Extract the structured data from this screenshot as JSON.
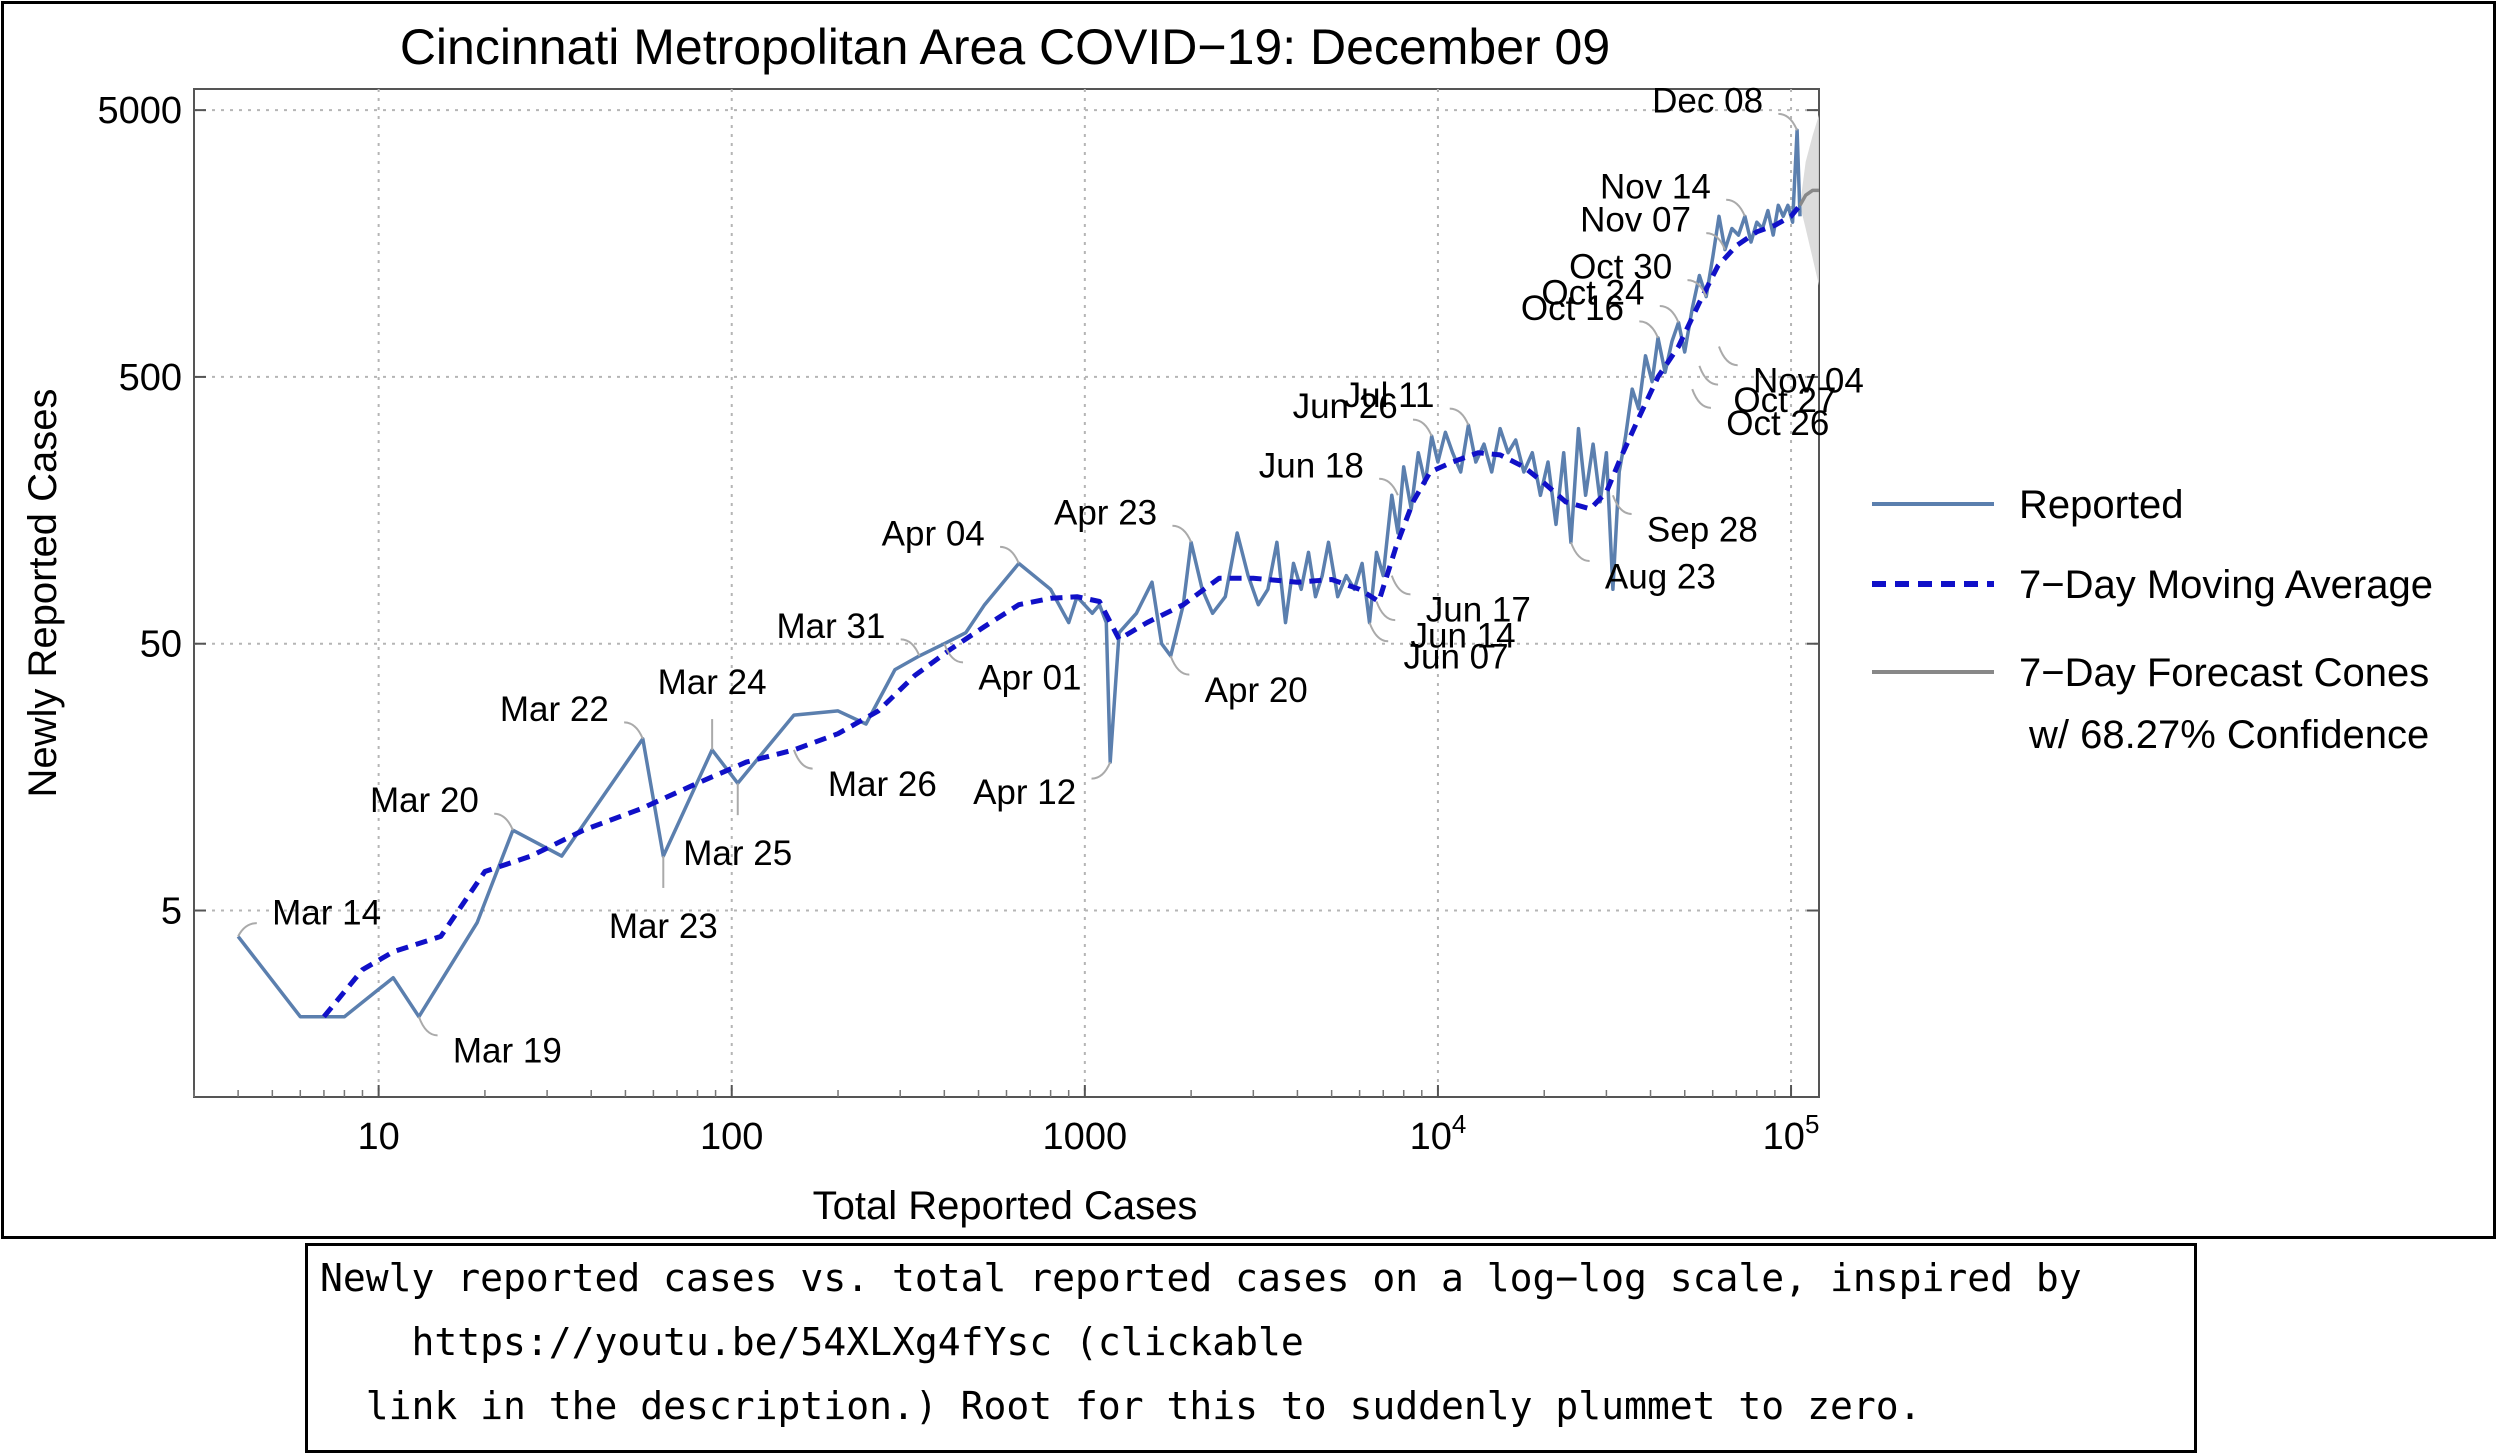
{
  "chart_data": {
    "type": "line",
    "title": "Cincinnati Metropolitan Area COVID−19: December 09",
    "xlabel": "Total Reported Cases",
    "ylabel": "Newly Reported Cases",
    "x_scale": "log",
    "y_scale": "log",
    "xlim": [
      3,
      120000
    ],
    "ylim": [
      1,
      6000
    ],
    "grid": true,
    "x_ticks": [
      {
        "value": 10,
        "label": "10"
      },
      {
        "value": 100,
        "label": "100"
      },
      {
        "value": 1000,
        "label": "1000"
      },
      {
        "value": 10000,
        "label": "10",
        "exp": "4"
      },
      {
        "value": 100000,
        "label": "10",
        "exp": "5"
      }
    ],
    "y_ticks": [
      {
        "value": 5,
        "label": "5"
      },
      {
        "value": 50,
        "label": "50"
      },
      {
        "value": 500,
        "label": "500"
      },
      {
        "value": 5000,
        "label": "5000"
      }
    ],
    "legend_placement": "right",
    "series": [
      {
        "name": "Reported",
        "color": "#5b7fae",
        "style": "solid",
        "points": [
          [
            4,
            4
          ],
          [
            6,
            2
          ],
          [
            8,
            2
          ],
          [
            11,
            2.8
          ],
          [
            13,
            2
          ],
          [
            19,
            4.5
          ],
          [
            24,
            10
          ],
          [
            33,
            8
          ],
          [
            56,
            22
          ],
          [
            64,
            8
          ],
          [
            88,
            20
          ],
          [
            104,
            15
          ],
          [
            150,
            27
          ],
          [
            200,
            28
          ],
          [
            240,
            25
          ],
          [
            290,
            40
          ],
          [
            340,
            45
          ],
          [
            400,
            50
          ],
          [
            460,
            55
          ],
          [
            520,
            70
          ],
          [
            650,
            100
          ],
          [
            800,
            80
          ],
          [
            900,
            60
          ],
          [
            950,
            75
          ],
          [
            1050,
            65
          ],
          [
            1100,
            70
          ],
          [
            1150,
            60
          ],
          [
            1180,
            18
          ],
          [
            1250,
            55
          ],
          [
            1400,
            65
          ],
          [
            1550,
            85
          ],
          [
            1650,
            50
          ],
          [
            1750,
            45
          ],
          [
            1900,
            70
          ],
          [
            2000,
            120
          ],
          [
            2150,
            80
          ],
          [
            2300,
            65
          ],
          [
            2500,
            75
          ],
          [
            2700,
            130
          ],
          [
            2900,
            90
          ],
          [
            3100,
            70
          ],
          [
            3300,
            80
          ],
          [
            3500,
            120
          ],
          [
            3700,
            60
          ],
          [
            3900,
            100
          ],
          [
            4100,
            80
          ],
          [
            4300,
            110
          ],
          [
            4500,
            75
          ],
          [
            4700,
            90
          ],
          [
            4900,
            120
          ],
          [
            5200,
            75
          ],
          [
            5500,
            90
          ],
          [
            5800,
            80
          ],
          [
            6100,
            100
          ],
          [
            6400,
            60
          ],
          [
            6700,
            110
          ],
          [
            7000,
            90
          ],
          [
            7400,
            180
          ],
          [
            7700,
            130
          ],
          [
            8000,
            230
          ],
          [
            8400,
            160
          ],
          [
            8800,
            260
          ],
          [
            9200,
            200
          ],
          [
            9600,
            300
          ],
          [
            10000,
            240
          ],
          [
            10500,
            310
          ],
          [
            11000,
            260
          ],
          [
            11600,
            220
          ],
          [
            12200,
            330
          ],
          [
            12800,
            240
          ],
          [
            13500,
            280
          ],
          [
            14200,
            220
          ],
          [
            15000,
            320
          ],
          [
            15800,
            260
          ],
          [
            16600,
            290
          ],
          [
            17500,
            220
          ],
          [
            18500,
            260
          ],
          [
            19500,
            180
          ],
          [
            20500,
            240
          ],
          [
            21600,
            140
          ],
          [
            22700,
            260
          ],
          [
            23800,
            120
          ],
          [
            25000,
            320
          ],
          [
            26200,
            180
          ],
          [
            27500,
            280
          ],
          [
            28800,
            170
          ],
          [
            30000,
            260
          ],
          [
            31300,
            80
          ],
          [
            32600,
            220
          ],
          [
            34000,
            300
          ],
          [
            35500,
            450
          ],
          [
            37000,
            380
          ],
          [
            38700,
            600
          ],
          [
            40400,
            480
          ],
          [
            42000,
            700
          ],
          [
            44000,
            520
          ],
          [
            46000,
            680
          ],
          [
            48000,
            800
          ],
          [
            50000,
            620
          ],
          [
            52500,
            900
          ],
          [
            55000,
            1200
          ],
          [
            57500,
            1000
          ],
          [
            60000,
            1400
          ],
          [
            62500,
            2000
          ],
          [
            65000,
            1500
          ],
          [
            68000,
            1800
          ],
          [
            71000,
            1700
          ],
          [
            74000,
            2000
          ],
          [
            77000,
            1600
          ],
          [
            80000,
            1900
          ],
          [
            83000,
            1800
          ],
          [
            86000,
            2100
          ],
          [
            89000,
            1700
          ],
          [
            92000,
            2200
          ],
          [
            95000,
            2000
          ],
          [
            98000,
            2200
          ],
          [
            101000,
            1900
          ],
          [
            104000,
            4200
          ],
          [
            106000,
            2000
          ]
        ]
      },
      {
        "name": "7−Day Moving Average",
        "color": "#1010c8",
        "style": "dashed",
        "points": [
          [
            7,
            2
          ],
          [
            9,
            3
          ],
          [
            11,
            3.5
          ],
          [
            15,
            4
          ],
          [
            20,
            7
          ],
          [
            27,
            8
          ],
          [
            38,
            10
          ],
          [
            55,
            12
          ],
          [
            80,
            15
          ],
          [
            110,
            18
          ],
          [
            150,
            20
          ],
          [
            200,
            23
          ],
          [
            260,
            28
          ],
          [
            330,
            38
          ],
          [
            420,
            48
          ],
          [
            520,
            58
          ],
          [
            650,
            70
          ],
          [
            800,
            74
          ],
          [
            950,
            75
          ],
          [
            1100,
            72
          ],
          [
            1250,
            52
          ],
          [
            1500,
            60
          ],
          [
            1900,
            70
          ],
          [
            2400,
            88
          ],
          [
            3000,
            88
          ],
          [
            4000,
            85
          ],
          [
            5000,
            87
          ],
          [
            6000,
            80
          ],
          [
            6800,
            72
          ],
          [
            7600,
            115
          ],
          [
            8500,
            170
          ],
          [
            9500,
            220
          ],
          [
            11000,
            240
          ],
          [
            13000,
            260
          ],
          [
            15000,
            255
          ],
          [
            17500,
            230
          ],
          [
            20000,
            200
          ],
          [
            23000,
            170
          ],
          [
            27000,
            160
          ],
          [
            30000,
            185
          ],
          [
            33000,
            250
          ],
          [
            37000,
            350
          ],
          [
            42000,
            500
          ],
          [
            48000,
            650
          ],
          [
            55000,
            950
          ],
          [
            62000,
            1300
          ],
          [
            70000,
            1550
          ],
          [
            80000,
            1750
          ],
          [
            90000,
            1850
          ],
          [
            100000,
            2000
          ],
          [
            106000,
            2200
          ]
        ]
      },
      {
        "name": "7−Day Forecast Cones",
        "name_line2": "w/ 68.27% Confidence",
        "color": "#888888",
        "style": "solid",
        "points": [
          [
            106000,
            2200
          ],
          [
            110000,
            2400
          ],
          [
            115000,
            2500
          ],
          [
            120000,
            2500
          ]
        ],
        "band_upper": [
          [
            106000,
            2200
          ],
          [
            110000,
            3200
          ],
          [
            115000,
            4000
          ],
          [
            120000,
            4800
          ]
        ],
        "band_lower": [
          [
            106000,
            2200
          ],
          [
            110000,
            1800
          ],
          [
            115000,
            1400
          ],
          [
            120000,
            1100
          ]
        ]
      }
    ],
    "annotations": [
      {
        "label": "Mar 14",
        "x": 4,
        "y": 4,
        "pos": "upper-right"
      },
      {
        "label": "Mar 19",
        "x": 13,
        "y": 2,
        "pos": "lower-right"
      },
      {
        "label": "Mar 20",
        "x": 24,
        "y": 10,
        "pos": "upper-left"
      },
      {
        "label": "Mar 22",
        "x": 56,
        "y": 22,
        "pos": "upper-left"
      },
      {
        "label": "Mar 23",
        "x": 64,
        "y": 8,
        "pos": "below"
      },
      {
        "label": "Mar 24",
        "x": 88,
        "y": 20,
        "pos": "above"
      },
      {
        "label": "Mar 25",
        "x": 104,
        "y": 15,
        "pos": "below"
      },
      {
        "label": "Mar 26",
        "x": 150,
        "y": 20,
        "pos": "lower-right"
      },
      {
        "label": "Mar 31",
        "x": 340,
        "y": 45,
        "pos": "upper-left"
      },
      {
        "label": "Apr 01",
        "x": 400,
        "y": 50,
        "pos": "lower-right"
      },
      {
        "label": "Apr 04",
        "x": 650,
        "y": 100,
        "pos": "upper-left"
      },
      {
        "label": "Apr 12",
        "x": 1180,
        "y": 18,
        "pos": "lower-left"
      },
      {
        "label": "Apr 20",
        "x": 1750,
        "y": 45,
        "pos": "lower-right"
      },
      {
        "label": "Apr 23",
        "x": 2000,
        "y": 120,
        "pos": "upper-left"
      },
      {
        "label": "Jun 07",
        "x": 6400,
        "y": 60,
        "pos": "lower-right"
      },
      {
        "label": "Jun 14",
        "x": 6700,
        "y": 72,
        "pos": "lower-right"
      },
      {
        "label": "Jun 17",
        "x": 7400,
        "y": 90,
        "pos": "lower-right"
      },
      {
        "label": "Jun 18",
        "x": 7700,
        "y": 180,
        "pos": "upper-left"
      },
      {
        "label": "Jun 26",
        "x": 9600,
        "y": 300,
        "pos": "upper-left"
      },
      {
        "label": "Jul 11",
        "x": 12200,
        "y": 330,
        "pos": "upper-left"
      },
      {
        "label": "Aug 23",
        "x": 23800,
        "y": 120,
        "pos": "lower-right"
      },
      {
        "label": "Sep 28",
        "x": 31300,
        "y": 180,
        "pos": "lower-right"
      },
      {
        "label": "Oct 16",
        "x": 42000,
        "y": 700,
        "pos": "upper-left"
      },
      {
        "label": "Oct 24",
        "x": 48000,
        "y": 800,
        "pos": "upper-left"
      },
      {
        "label": "Oct 26",
        "x": 52500,
        "y": 450,
        "pos": "lower-right"
      },
      {
        "label": "Oct 27",
        "x": 55000,
        "y": 550,
        "pos": "lower-right"
      },
      {
        "label": "Oct 30",
        "x": 57500,
        "y": 1000,
        "pos": "upper-left"
      },
      {
        "label": "Nov 04",
        "x": 62500,
        "y": 650,
        "pos": "lower-right"
      },
      {
        "label": "Nov 07",
        "x": 65000,
        "y": 1500,
        "pos": "upper-left"
      },
      {
        "label": "Nov 14",
        "x": 74000,
        "y": 2000,
        "pos": "upper-left"
      },
      {
        "label": "Dec 08",
        "x": 104000,
        "y": 4200,
        "pos": "upper-left"
      }
    ]
  },
  "caption": {
    "line1": "Newly reported cases vs. total reported cases on a log−log scale, inspired by",
    "line2": "    https://youtu.be/54XLXg4fYsc (clickable",
    "line3": "  link in the description.) Root for this to suddenly plummet to zero."
  }
}
